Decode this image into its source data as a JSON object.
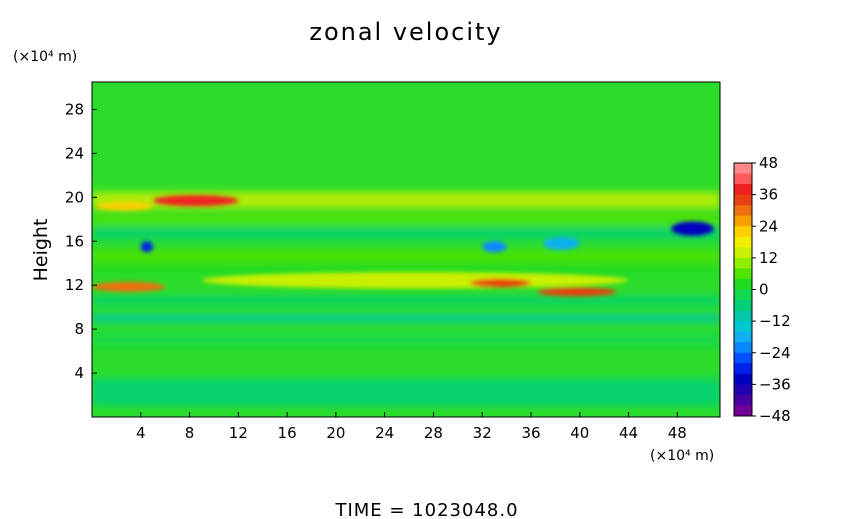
{
  "chart_data": {
    "type": "heatmap",
    "title": "zonal velocity",
    "ylabel": "Height",
    "x_unit_label": "(×10⁴ m)",
    "y_unit_label": "(×10⁴ m)",
    "x_ticks": [
      4,
      8,
      12,
      16,
      20,
      24,
      28,
      32,
      36,
      40,
      44,
      48
    ],
    "y_ticks": [
      4,
      8,
      12,
      16,
      20,
      24,
      28
    ],
    "xlim": [
      0,
      51.5
    ],
    "ylim": [
      0,
      30.5
    ],
    "colorbar": {
      "ticks": [
        48,
        36,
        24,
        12,
        0,
        -12,
        -24,
        -36,
        -48
      ],
      "range": [
        -48,
        48
      ],
      "levels": 24,
      "colors": [
        "#ff8a8a",
        "#ff5a5a",
        "#f02020",
        "#e84010",
        "#f07010",
        "#f8a000",
        "#ffd000",
        "#f0f000",
        "#c8f000",
        "#90ef00",
        "#50e400",
        "#20dc20",
        "#10d850",
        "#00d078",
        "#00c8a8",
        "#00c8d0",
        "#10b0f0",
        "#0888ff",
        "#0050ff",
        "#0020e8",
        "#0000c0",
        "#2000b0",
        "#4800a0",
        "#700098"
      ]
    },
    "features": [
      {
        "desc": "background",
        "value": 2
      },
      {
        "x": [
          0.3,
          5
        ],
        "y": [
          18.8,
          19.6
        ],
        "value": 24
      },
      {
        "x": [
          5,
          12
        ],
        "y": [
          19.2,
          20.2
        ],
        "value": 38
      },
      {
        "x": [
          0,
          6
        ],
        "y": [
          11.4,
          12.3
        ],
        "value": 32
      },
      {
        "x": [
          9,
          44
        ],
        "y": [
          11.7,
          13.2
        ],
        "value": 16
      },
      {
        "x": [
          31,
          36
        ],
        "y": [
          11.8,
          12.6
        ],
        "value": 34
      },
      {
        "x": [
          36.5,
          43
        ],
        "y": [
          11.0,
          11.8
        ],
        "value": 34
      },
      {
        "x": [
          4,
          5
        ],
        "y": [
          15,
          16
        ],
        "value": -30
      },
      {
        "x": [
          47.5,
          51
        ],
        "y": [
          16.5,
          17.8
        ],
        "value": -32
      },
      {
        "x": [
          32,
          34
        ],
        "y": [
          15,
          16
        ],
        "value": -20
      },
      {
        "x": [
          37,
          40
        ],
        "y": [
          15.2,
          16.4
        ],
        "value": -18
      }
    ]
  },
  "footer": {
    "time_label": "TIME  =  1023048.0"
  }
}
